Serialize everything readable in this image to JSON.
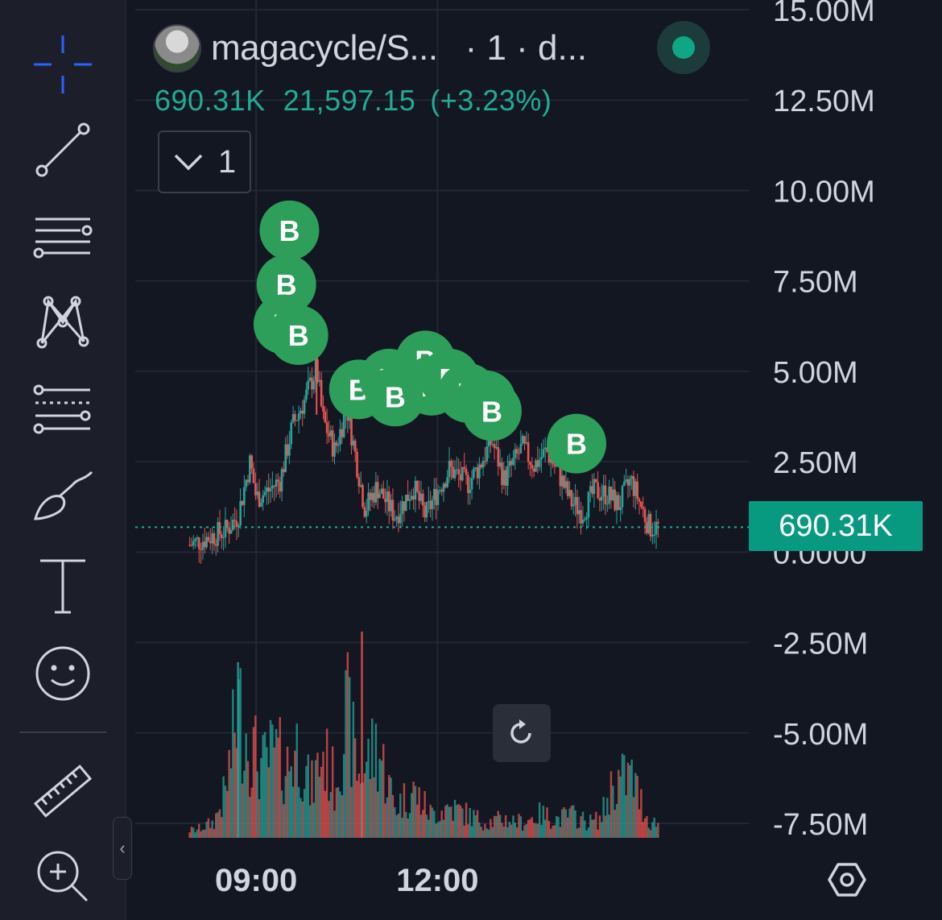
{
  "legend": {
    "symbol": "magacycle/S...",
    "interval": "· 1 · d...",
    "last_volume": "690.31K",
    "price": "21,597.15",
    "change": "(+3.23%)",
    "collapse_count": "1"
  },
  "price_label": "690.31K",
  "colors": {
    "background": "#131722",
    "up": "#26a69a",
    "down": "#ef5350",
    "marker": "#2e9e5b",
    "price_label": "#089981"
  },
  "toolbar": {
    "tools": [
      "crosshair",
      "trend-line",
      "horizontal-lines",
      "pattern",
      "fib-retracement",
      "brush",
      "text",
      "emoji",
      "ruler",
      "zoom-in"
    ]
  },
  "chart_data": {
    "type": "candlestick",
    "y_axis": {
      "labels": [
        "15.00M",
        "12.50M",
        "10.00M",
        "7.50M",
        "5.00M",
        "2.50M",
        "0.0000",
        "-2.50M",
        "-5.00M",
        "-7.50M"
      ],
      "values": [
        15000000,
        12500000,
        10000000,
        7500000,
        5000000,
        2500000,
        0,
        -2500000,
        -5000000,
        -7500000
      ],
      "range": [
        -7500000,
        15000000
      ]
    },
    "x_axis": {
      "labels": [
        "09:00",
        "12:00"
      ]
    },
    "current_value": 690310,
    "price_series": {
      "times": [
        7.9,
        8.2,
        8.5,
        8.7,
        8.9,
        9.0,
        9.2,
        9.4,
        9.6,
        9.8,
        10.0,
        10.1,
        10.3,
        10.5,
        10.8,
        11.0,
        11.3,
        11.6,
        11.8,
        12.0,
        12.2,
        12.5,
        12.7,
        12.9,
        13.1,
        13.4,
        13.6,
        13.8,
        14.0,
        14.2,
        14.4,
        14.6,
        14.8,
        15.0,
        15.2,
        15.5,
        15.6,
        17.5
      ],
      "values": [
        200000,
        400000,
        600000,
        1000000,
        2500000,
        1500000,
        1700000,
        2000000,
        3500000,
        4200000,
        5100000,
        3700000,
        2800000,
        4000000,
        1200000,
        1800000,
        1000000,
        1800000,
        1000000,
        1700000,
        2300000,
        1900000,
        2400000,
        3100000,
        2000000,
        2900000,
        2400000,
        2800000,
        2200000,
        1400000,
        1100000,
        1700000,
        1600000,
        1300000,
        2000000,
        700000,
        690310,
        690310
      ]
    },
    "buy_markers": {
      "label": "B",
      "times": [
        9.55,
        9.5,
        9.45,
        9.7,
        10.7,
        11.2,
        11.3,
        11.8,
        11.9,
        12.2,
        12.5,
        12.8,
        12.9,
        14.3
      ],
      "values": [
        8900000,
        7400000,
        6300000,
        6000000,
        4500000,
        4800000,
        4300000,
        5300000,
        4600000,
        4800000,
        4400000,
        4200000,
        3900000,
        3000000
      ]
    },
    "volume_series": {
      "note_units": "relative",
      "times": [
        8.0,
        8.3,
        8.5,
        8.7,
        8.9,
        9.1,
        9.3,
        9.5,
        9.7,
        9.9,
        10.1,
        10.3,
        10.5,
        10.7,
        11.0,
        11.3,
        11.6,
        11.9,
        12.2,
        12.5,
        12.8,
        13.1,
        13.4,
        13.7,
        14.0,
        14.2,
        14.5,
        14.7,
        14.9,
        15.2,
        15.5
      ],
      "values": [
        0.05,
        0.1,
        0.3,
        0.85,
        0.6,
        0.45,
        0.55,
        0.45,
        0.6,
        0.3,
        0.55,
        0.35,
        0.8,
        0.4,
        0.6,
        0.2,
        0.3,
        0.15,
        0.2,
        0.15,
        0.1,
        0.12,
        0.1,
        0.15,
        0.12,
        0.15,
        0.1,
        0.12,
        0.35,
        0.4,
        0.1
      ]
    }
  }
}
